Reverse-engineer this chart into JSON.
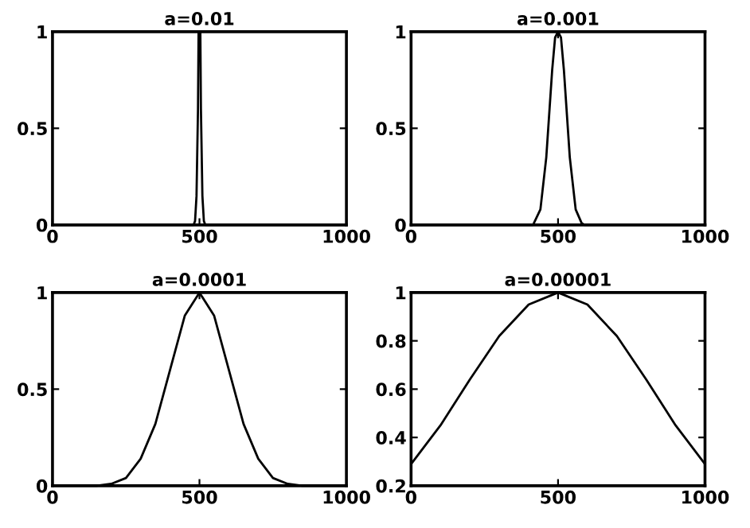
{
  "chart_data": [
    {
      "type": "line",
      "title": "a=0.01",
      "x": [
        0,
        480,
        485,
        490,
        495,
        497,
        500,
        503,
        505,
        510,
        515,
        520,
        1000
      ],
      "values": [
        0,
        0,
        0.02,
        0.15,
        0.6,
        1,
        1,
        1,
        0.6,
        0.15,
        0.02,
        0,
        0
      ],
      "color": "#000000",
      "xlim": [
        0,
        1000
      ],
      "ylim": [
        0,
        1
      ],
      "xticks": [
        0,
        500,
        1000
      ],
      "yticks": [
        0,
        0.5,
        1
      ]
    },
    {
      "type": "line",
      "title": "a=0.001",
      "x": [
        0,
        415,
        440,
        460,
        480,
        490,
        500,
        510,
        520,
        540,
        560,
        580,
        590,
        1000
      ],
      "values": [
        0,
        0,
        0.08,
        0.35,
        0.8,
        0.97,
        1,
        0.97,
        0.8,
        0.35,
        0.08,
        0.01,
        0,
        0
      ],
      "color": "#000000",
      "xlim": [
        0,
        1000
      ],
      "ylim": [
        0,
        1
      ],
      "xticks": [
        0,
        500,
        1000
      ],
      "yticks": [
        0,
        0.5,
        1
      ]
    },
    {
      "type": "line",
      "title": "a=0.0001",
      "x": [
        0,
        150,
        200,
        250,
        300,
        350,
        400,
        450,
        500,
        550,
        600,
        650,
        700,
        750,
        800,
        850,
        1000
      ],
      "values": [
        0,
        0,
        0.01,
        0.04,
        0.14,
        0.32,
        0.6,
        0.88,
        1,
        0.88,
        0.6,
        0.32,
        0.14,
        0.04,
        0.01,
        0,
        0
      ],
      "color": "#000000",
      "xlim": [
        0,
        1000
      ],
      "ylim": [
        0,
        1
      ],
      "xticks": [
        0,
        500,
        1000
      ],
      "yticks": [
        0,
        0.5,
        1
      ]
    },
    {
      "type": "line",
      "title": "a=0.00001",
      "x": [
        0,
        100,
        200,
        300,
        400,
        500,
        600,
        700,
        800,
        900,
        1000
      ],
      "values": [
        0.29,
        0.45,
        0.64,
        0.82,
        0.95,
        1,
        0.95,
        0.82,
        0.64,
        0.45,
        0.29
      ],
      "color": "#000000",
      "xlim": [
        0,
        1000
      ],
      "ylim": [
        0.2,
        1
      ],
      "xticks": [
        0,
        500,
        1000
      ],
      "yticks": [
        0.2,
        0.4,
        0.6,
        0.8,
        1
      ]
    }
  ]
}
